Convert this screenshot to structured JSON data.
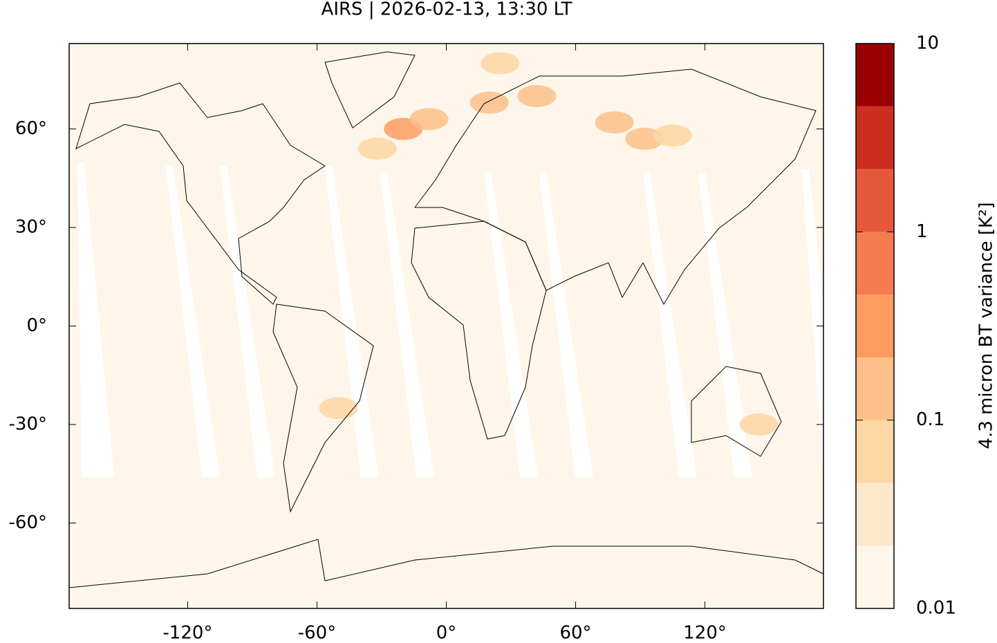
{
  "chart_data": {
    "type": "map",
    "title": "AIRS | 2026-02-13, 13:30 LT",
    "xlim": [
      -175,
      175
    ],
    "ylim": [
      -86,
      86
    ],
    "xticks": [
      {
        "value": -120,
        "label": "-120°"
      },
      {
        "value": -60,
        "label": "-60°"
      },
      {
        "value": 0,
        "label": "0°"
      },
      {
        "value": 60,
        "label": "60°"
      },
      {
        "value": 120,
        "label": "120°"
      }
    ],
    "yticks": [
      {
        "value": -60,
        "label": "-60°"
      },
      {
        "value": -30,
        "label": "-30°"
      },
      {
        "value": 0,
        "label": "0°"
      },
      {
        "value": 30,
        "label": "30°"
      },
      {
        "value": 60,
        "label": "60°"
      }
    ],
    "regions": {
      "lon": [
        -20,
        -8,
        20,
        42,
        78,
        92,
        -50,
        145,
        25,
        -32,
        105
      ],
      "lat": [
        60,
        63,
        68,
        70,
        62,
        57,
        -25,
        -30,
        80,
        54,
        58
      ],
      "values": [
        0.3,
        0.2,
        0.15,
        0.1,
        0.2,
        0.1,
        0.07,
        0.07,
        0.06,
        0.05,
        0.05
      ]
    },
    "colorbar": {
      "label": "4.3 micron BT variance [K²]",
      "log": true,
      "lim": [
        0.01,
        10
      ],
      "ticks": [
        0.01,
        0.1,
        1,
        10
      ],
      "levels": [
        0.01,
        0.0215,
        0.0464,
        0.1,
        0.215,
        0.464,
        1,
        2.15,
        4.64,
        10
      ],
      "colors": [
        "#fef6ea",
        "#fde8cc",
        "#fdd6a5",
        "#fdc08a",
        "#fc9c61",
        "#f47c4f",
        "#e6583a",
        "#cd2e1f",
        "#9b0000"
      ]
    }
  }
}
